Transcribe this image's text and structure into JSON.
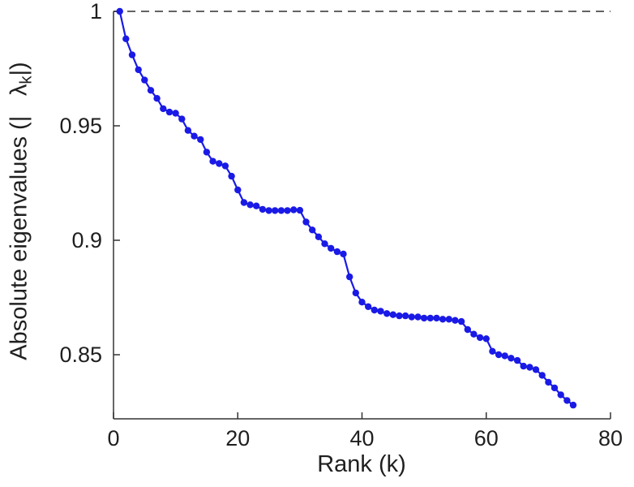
{
  "figure": {
    "background": "#ffffff"
  },
  "chart_data": {
    "type": "line",
    "title": "",
    "xlabel": "Rank (k)",
    "ylabel": {
      "prefix": "Absolute eigenvalues (|",
      "symbol": "λ",
      "subscript": "k",
      "suffix": "|)"
    },
    "xlim": [
      0,
      80
    ],
    "ylim": [
      0.822,
      1.0
    ],
    "xticks": [
      0,
      20,
      40,
      60,
      80
    ],
    "xtick_labels": [
      "0",
      "20",
      "40",
      "60",
      "80"
    ],
    "yticks": [
      0.85,
      0.9,
      0.95,
      1
    ],
    "ytick_labels": [
      "0.85",
      "0.9",
      "0.95",
      "1"
    ],
    "grid": false,
    "legend": null,
    "axis_color": "#333333",
    "reference_line": {
      "y": 1.0,
      "style": "dashed",
      "color": "#4d4d4d"
    },
    "series": [
      {
        "name": "absolute-eigenvalues",
        "color": "#1a1ae6",
        "marker": "circle",
        "x": [
          1,
          2,
          3,
          4,
          5,
          6,
          7,
          8,
          9,
          10,
          11,
          12,
          13,
          14,
          15,
          16,
          17,
          18,
          19,
          20,
          21,
          22,
          23,
          24,
          25,
          26,
          27,
          28,
          29,
          30,
          31,
          32,
          33,
          34,
          35,
          36,
          37,
          38,
          39,
          40,
          41,
          42,
          43,
          44,
          45,
          46,
          47,
          48,
          49,
          50,
          51,
          52,
          53,
          54,
          55,
          56,
          57,
          58,
          59,
          60,
          61,
          62,
          63,
          64,
          65,
          66,
          67,
          68,
          69,
          70,
          71,
          72,
          73,
          74
        ],
        "y": [
          1.0,
          0.988,
          0.981,
          0.9745,
          0.97,
          0.9655,
          0.962,
          0.9575,
          0.956,
          0.9555,
          0.953,
          0.948,
          0.9455,
          0.944,
          0.9385,
          0.9345,
          0.9335,
          0.9325,
          0.928,
          0.922,
          0.9165,
          0.9155,
          0.915,
          0.9135,
          0.913,
          0.913,
          0.913,
          0.913,
          0.9133,
          0.9131,
          0.908,
          0.9045,
          0.9015,
          0.8985,
          0.8965,
          0.895,
          0.894,
          0.884,
          0.877,
          0.873,
          0.871,
          0.8695,
          0.869,
          0.868,
          0.8675,
          0.867,
          0.867,
          0.8665,
          0.8665,
          0.866,
          0.866,
          0.866,
          0.8655,
          0.8655,
          0.865,
          0.8645,
          0.861,
          0.859,
          0.8575,
          0.857,
          0.8515,
          0.85,
          0.8495,
          0.8485,
          0.8475,
          0.845,
          0.8445,
          0.8435,
          0.841,
          0.838,
          0.8355,
          0.8325,
          0.83,
          0.828
        ]
      }
    ]
  }
}
